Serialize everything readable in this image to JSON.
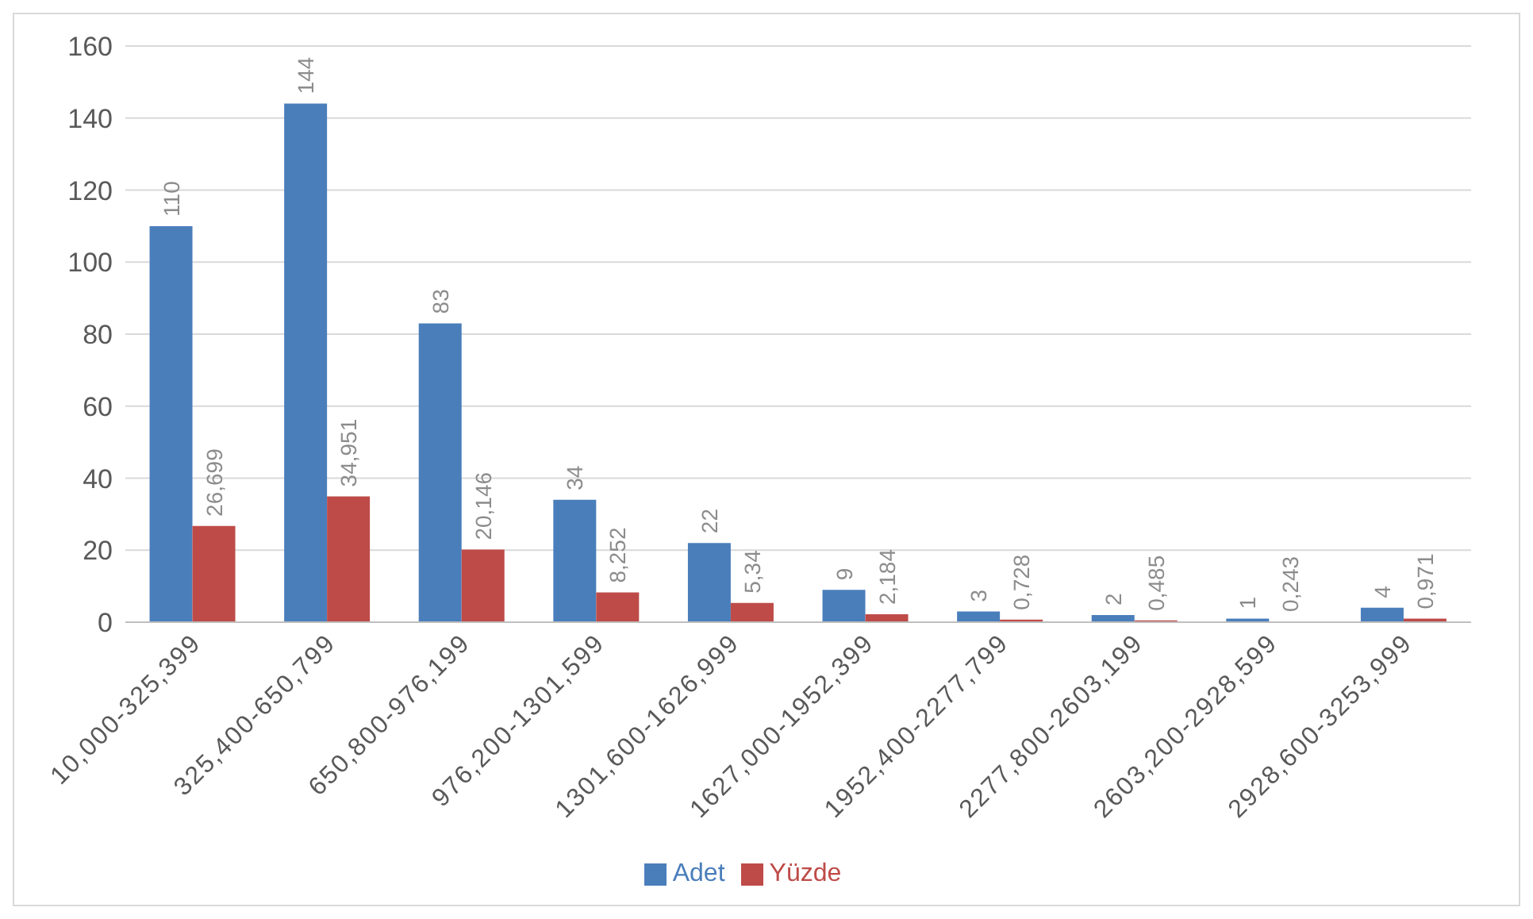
{
  "chart_data": {
    "type": "bar",
    "categories": [
      "10,000-325,399",
      "325,400-650,799",
      "650,800-976,199",
      "976,200-1301,599",
      "1301,600-1626,999",
      "1627,000-1952,399",
      "1952,400-2277,799",
      "2277,800-2603,199",
      "2603,200-2928,599",
      "2928,600-3253,999"
    ],
    "series": [
      {
        "name": "Adet",
        "color": "#4a7ebb",
        "values": [
          110,
          144,
          83,
          34,
          22,
          9,
          3,
          2,
          1,
          4
        ],
        "value_labels": [
          "110",
          "144",
          "83",
          "34",
          "22",
          "9",
          "3",
          "2",
          "1",
          "4"
        ]
      },
      {
        "name": "Yüzde",
        "color": "#be4b48",
        "values": [
          26.699,
          34.951,
          20.146,
          8.252,
          5.34,
          2.184,
          0.728,
          0.485,
          0.243,
          0.971
        ],
        "value_labels": [
          "26,699",
          "34,951",
          "20,146",
          "8,252",
          "5,34",
          "2,184",
          "0,728",
          "0,485",
          "0,243",
          "0,971"
        ]
      }
    ],
    "ylim": [
      0,
      160
    ],
    "yticks": [
      0,
      20,
      40,
      60,
      80,
      100,
      120,
      140,
      160
    ],
    "grid": "y",
    "legend": "bottom"
  }
}
